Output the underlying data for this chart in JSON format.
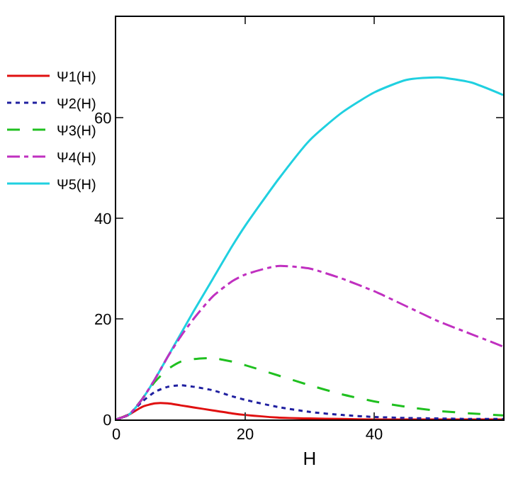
{
  "chart_data": {
    "type": "line",
    "xlabel": "H",
    "x": [
      0,
      2,
      4,
      6,
      8,
      10,
      12,
      15,
      18,
      20,
      25,
      30,
      35,
      40,
      45,
      50,
      55,
      60
    ],
    "series": [
      {
        "name": "Ψ1(H)",
        "color": "#e01010",
        "line_style": "solid",
        "values": [
          0,
          1,
          2.5,
          3.2,
          3.2,
          2.8,
          2.4,
          1.8,
          1.2,
          0.9,
          0.4,
          0.2,
          0.1,
          0,
          0,
          0,
          0,
          0
        ]
      },
      {
        "name": "Ψ2(H)",
        "color": "#2020a0",
        "line_style": "dotted",
        "values": [
          0,
          1,
          3.5,
          5.5,
          6.5,
          6.8,
          6.5,
          5.8,
          4.6,
          3.9,
          2.5,
          1.5,
          0.9,
          0.5,
          0.3,
          0.2,
          0.1,
          0.1
        ]
      },
      {
        "name": "Ψ3(H)",
        "color": "#20c020",
        "line_style": "dashed",
        "values": [
          0,
          1,
          4,
          7.5,
          10,
          11.5,
          12,
          12.2,
          11.5,
          10.8,
          8.8,
          6.8,
          5,
          3.6,
          2.5,
          1.7,
          1.2,
          0.8
        ]
      },
      {
        "name": "Ψ4(H)",
        "color": "#c030c0",
        "line_style": "dashdot",
        "values": [
          0,
          1,
          4,
          8,
          12.5,
          16.5,
          20,
          24.5,
          27.5,
          28.8,
          30.5,
          30,
          28,
          25.5,
          22.5,
          19.5,
          17,
          14.5
        ]
      },
      {
        "name": "Ψ5(H)",
        "color": "#20d0e0",
        "line_style": "solid",
        "values": [
          0,
          1,
          4,
          8,
          12.5,
          17,
          21.5,
          28,
          34.5,
          38.5,
          47.5,
          55.5,
          61,
          65,
          67.5,
          68,
          67,
          64.5
        ]
      }
    ],
    "xlim": [
      0,
      60
    ],
    "xticks": [
      0,
      20,
      40
    ],
    "ylim": [
      0,
      80
    ],
    "yticks": [
      0,
      20,
      40,
      60
    ],
    "grid": false,
    "legend": "left",
    "marker": "none"
  }
}
